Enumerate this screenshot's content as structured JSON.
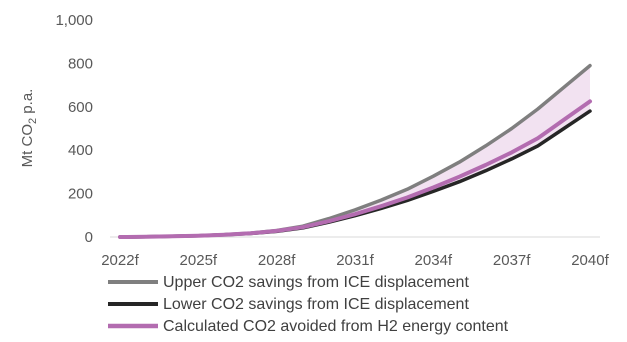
{
  "chart_data": {
    "type": "line",
    "title": "",
    "xlabel": "",
    "ylabel": "Mt CO",
    "ylabel_subscript": "2",
    "ylabel_suffix": " p.a.",
    "ylim": [
      0,
      1000
    ],
    "yticks": [
      "0",
      "200",
      "400",
      "600",
      "800",
      "1,000"
    ],
    "xtick_labels": [
      "2022f",
      "2025f",
      "2028f",
      "2031f",
      "2034f",
      "2037f",
      "2040f"
    ],
    "x": [
      "2022f",
      "2023f",
      "2024f",
      "2025f",
      "2026f",
      "2027f",
      "2028f",
      "2029f",
      "2030f",
      "2031f",
      "2032f",
      "2033f",
      "2034f",
      "2035f",
      "2036f",
      "2037f",
      "2038f",
      "2039f",
      "2040f"
    ],
    "series": [
      {
        "name": "Upper CO2 savings from ICE displacement",
        "color": "#7f7f7f",
        "values": [
          0,
          1,
          3,
          6,
          11,
          18,
          30,
          50,
          85,
          125,
          170,
          220,
          280,
          345,
          420,
          500,
          590,
          690,
          790
        ]
      },
      {
        "name": "Lower CO2 savings from ICE displacement",
        "color": "#262626",
        "values": [
          0,
          1,
          3,
          6,
          10,
          16,
          26,
          42,
          68,
          98,
          132,
          168,
          210,
          255,
          305,
          360,
          420,
          500,
          580
        ]
      },
      {
        "name": "Calculated CO2 avoided from H2 energy content",
        "color": "#b36cb0",
        "values": [
          0,
          1,
          3,
          6,
          10,
          17,
          28,
          45,
          73,
          105,
          142,
          182,
          228,
          278,
          332,
          390,
          455,
          540,
          625
        ]
      }
    ],
    "band_fill": "#f2e2f1",
    "legend_position": "bottom",
    "grid": false
  }
}
